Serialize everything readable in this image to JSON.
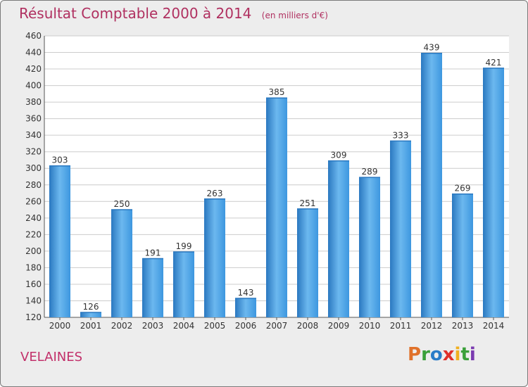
{
  "title": "Résultat Comptable 2000 à 2014",
  "unit_note": "(en milliers d'€)",
  "place": "VELAINES",
  "logo": {
    "letters": [
      "P",
      "r",
      "o",
      "x",
      "i",
      "t",
      "i"
    ],
    "colors": [
      "#e0712a",
      "#3aa03a",
      "#2a7cc8",
      "#e0302a",
      "#f0b020",
      "#3aa03a",
      "#7a3ab0"
    ]
  },
  "colors": {
    "bar": "#3d97df",
    "bar_light": "#6cb8ef",
    "bar_dark": "#2a78c0",
    "title": "#b03060",
    "grid": "#cccccc"
  },
  "chart_data": {
    "type": "bar",
    "categories": [
      "2000",
      "2001",
      "2002",
      "2003",
      "2004",
      "2005",
      "2006",
      "2007",
      "2008",
      "2009",
      "2010",
      "2011",
      "2012",
      "2013",
      "2014"
    ],
    "values": [
      303,
      126,
      250,
      191,
      199,
      263,
      143,
      385,
      251,
      309,
      289,
      333,
      439,
      269,
      421
    ],
    "ylim": [
      120,
      460
    ],
    "yticks": [
      120,
      140,
      160,
      180,
      200,
      220,
      240,
      260,
      280,
      300,
      320,
      340,
      360,
      380,
      400,
      420,
      440,
      460
    ],
    "grid": true,
    "legend": "none"
  }
}
